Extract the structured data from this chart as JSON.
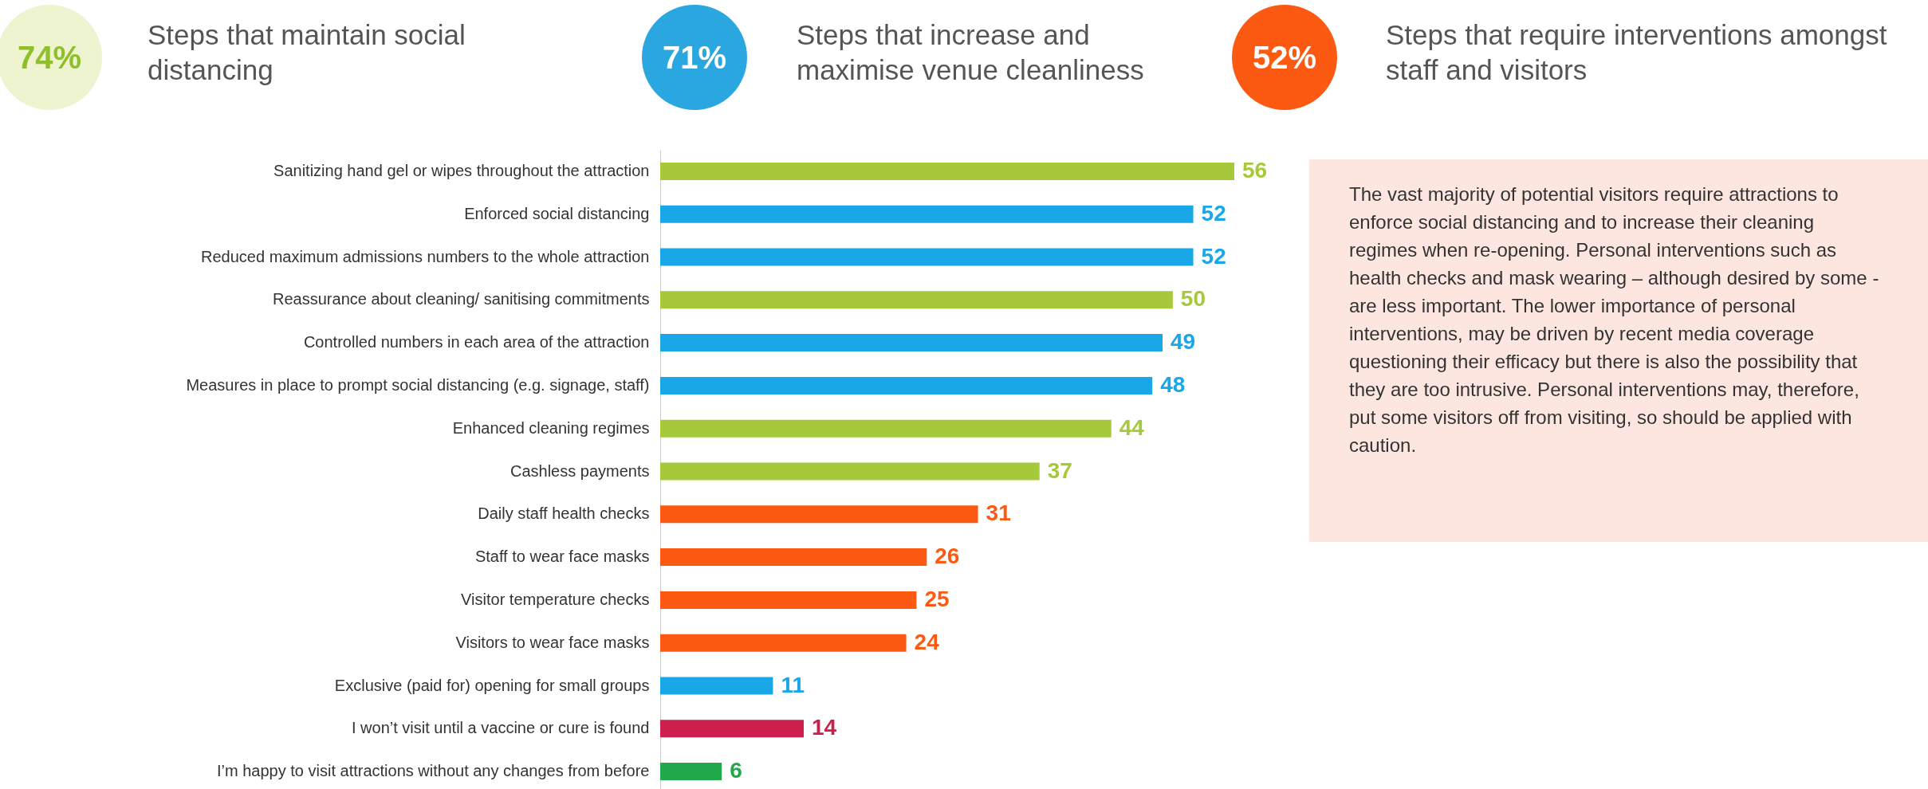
{
  "chart_data": {
    "type": "bar",
    "orientation": "horizontal",
    "data_labels": true,
    "categories": [
      "Sanitizing hand gel or wipes throughout the attraction",
      "Enforced social distancing",
      "Reduced maximum admissions numbers to the whole attraction",
      "Reassurance about cleaning/ sanitising commitments",
      "Controlled numbers in each area of the attraction",
      "Measures in place to prompt social distancing (e.g. signage, staff)",
      "Enhanced cleaning regimes",
      "Cashless payments",
      "Daily staff health checks",
      "Staff to wear face masks",
      "Visitor temperature checks",
      "Visitors to wear face masks",
      "Exclusive (paid for) opening for small groups",
      "I won’t visit until a vaccine or cure is found",
      "I’m happy to visit attractions without any changes from before"
    ],
    "values": [
      56,
      52,
      52,
      50,
      49,
      48,
      44,
      37,
      31,
      26,
      25,
      24,
      11,
      14,
      6
    ],
    "colors": [
      "#a5c93a",
      "#1aa7e8",
      "#1aa7e8",
      "#a5c93a",
      "#1aa7e8",
      "#1aa7e8",
      "#a5c93a",
      "#a5c93a",
      "#fc5a12",
      "#fc5a12",
      "#fc5a12",
      "#fc5a12",
      "#1aa7e8",
      "#cc1f4e",
      "#20a84b"
    ],
    "annotations": [
      "74%",
      "Steps that maintain social distancing",
      "71%",
      "Steps that increase and maximise venue cleanliness",
      "52%",
      "Steps that require interventions amongst staff and visitors",
      "The vast majority of potential visitors require attractions to enforce social distancing and to increase their cleaning regimes when re-opening. Personal interventions such as health checks and mask wearing – although desired by some - are less important.  The lower importance of personal interventions, may be driven by recent media coverage questioning  their efficacy but there is also the possibility that they are too intrusive.  Personal interventions may, therefore, put some visitors off from visiting, so should be applied with caution."
    ]
  }
}
